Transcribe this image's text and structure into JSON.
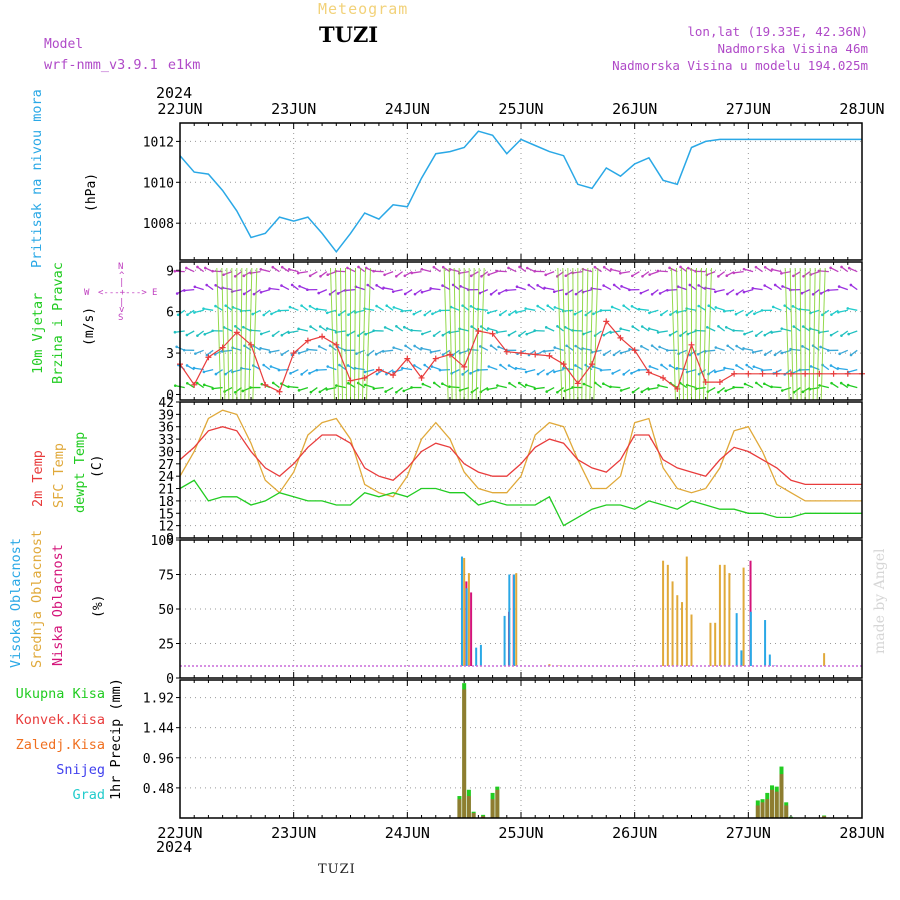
{
  "header": {
    "meteogram": "Meteogram",
    "station": "TUZI",
    "model_label": "Model",
    "model_name": "wrf-nmm_v3.9.1 e1km",
    "lonlat": "lon,lat (19.33E, 42.36N)",
    "elevation": "Nadmorska Visina 46m",
    "model_elevation": "Nadmorska Visina u modelu 194.025m"
  },
  "footer": {
    "station": "TUZI",
    "credit": "made by Angel"
  },
  "colors": {
    "pressure": "#2aa8e6",
    "temp2m": "#e83c3c",
    "sfc": "#e0a93a",
    "dewpt": "#22cc22",
    "high_cloud": "#2aa8e6",
    "mid_cloud": "#e0a93a",
    "low_cloud": "#d4147a",
    "total_rain": "#22cc22",
    "conv_rain": "#e83c3c",
    "frozen": "#f07020",
    "snow": "#4040ee",
    "hail": "#22cccc",
    "wind_label": "#22cc22",
    "compass": "#c040c0"
  },
  "chart_data": [
    {
      "type": "line",
      "panel": "pressure",
      "year_top": "2024",
      "year_bottom": "2024",
      "x_ticks": [
        "22JUN",
        "23JUN",
        "24JUN",
        "25JUN",
        "26JUN",
        "27JUN",
        "28JUN"
      ],
      "ylabel": "Pritisak na nivou mora",
      "unit": "(hPa)",
      "y_ticks": [
        "1008",
        "1010",
        "1012"
      ],
      "ylim": [
        1006.2,
        1012.9
      ],
      "x_hours": [
        0,
        3,
        6,
        9,
        12,
        15,
        18,
        21,
        24,
        27,
        30,
        33,
        36,
        39,
        42,
        45,
        48,
        51,
        54,
        57,
        60,
        63,
        66,
        69,
        72,
        75,
        78,
        81,
        84,
        87,
        90,
        93,
        96,
        99,
        102,
        105,
        108,
        111,
        114,
        117,
        120,
        123,
        126,
        129,
        132,
        135,
        138,
        141,
        144
      ],
      "series": [
        {
          "values": [
            1011.3,
            1010.5,
            1010.4,
            1009.6,
            1008.6,
            1007.3,
            1007.5,
            1008.3,
            1008.1,
            1008.3,
            1007.5,
            1006.6,
            1007.5,
            1008.5,
            1008.2,
            1008.9,
            1008.8,
            1010.2,
            1011.4,
            1011.5,
            1011.7,
            1012.5,
            1012.3,
            1011.4,
            1012.1,
            1011.8,
            1011.5,
            1011.3,
            1009.9,
            1009.7,
            1010.7,
            1010.3,
            1010.9,
            1011.2,
            1010.1,
            1009.9,
            1011.7,
            1012.0,
            1012.1,
            1012.1,
            1012.1,
            1012.1,
            1012.1,
            1012.1,
            1012.1,
            1012.1,
            1012.1,
            1012.1,
            1012.1
          ]
        }
      ]
    },
    {
      "type": "line",
      "panel": "wind",
      "ylabel_lines": [
        "10m Vjetar",
        "Brzina i Pravac"
      ],
      "unit": "(m/s)",
      "y_ticks": [
        "0",
        "3",
        "6",
        "9"
      ],
      "ylim": [
        -0.4,
        9.6
      ],
      "compass": {
        "n": "N",
        "s": "S",
        "w": "W",
        "e": "E"
      },
      "x_hours": [
        0,
        3,
        6,
        9,
        12,
        15,
        18,
        21,
        24,
        27,
        30,
        33,
        36,
        39,
        42,
        45,
        48,
        51,
        54,
        57,
        60,
        63,
        66,
        69,
        72,
        75,
        78,
        81,
        84,
        87,
        90,
        93,
        96,
        99,
        102,
        105,
        108,
        111,
        114,
        117,
        120,
        123,
        126,
        129,
        132,
        135,
        138,
        141,
        144
      ],
      "series": [
        {
          "name": "",
          "values": [
            2.2,
            0.7,
            2.7,
            3.4,
            4.5,
            3.6,
            0.7,
            0.2,
            3.0,
            3.9,
            4.2,
            3.6,
            1.0,
            1.2,
            1.8,
            1.4,
            2.6,
            1.2,
            2.6,
            2.9,
            2.0,
            4.6,
            4.4,
            3.1,
            3.0,
            2.9,
            2.8,
            2.2,
            0.8,
            2.2,
            5.3,
            4.1,
            3.2,
            1.6,
            1.2,
            0.4,
            3.6,
            0.9,
            0.9,
            1.5,
            1.5,
            1.5,
            1.5,
            1.5,
            1.5,
            1.5,
            1.5,
            1.5,
            1.5
          ]
        }
      ],
      "arrow_rows": [
        0.5,
        1.8,
        3.2,
        4.6,
        6.1,
        7.6,
        8.9
      ]
    },
    {
      "type": "line",
      "panel": "temperature",
      "ylabel_lines": [
        "2m Temp",
        "SFC Temp",
        "dewpt Temp"
      ],
      "unit": "(C)",
      "y_ticks": [
        "9",
        "12",
        "15",
        "18",
        "21",
        "24",
        "27",
        "30",
        "33",
        "36",
        "39",
        "42"
      ],
      "ylim": [
        9,
        42
      ],
      "x_hours": [
        0,
        3,
        6,
        9,
        12,
        15,
        18,
        21,
        24,
        27,
        30,
        33,
        36,
        39,
        42,
        45,
        48,
        51,
        54,
        57,
        60,
        63,
        66,
        69,
        72,
        75,
        78,
        81,
        84,
        87,
        90,
        93,
        96,
        99,
        102,
        105,
        108,
        111,
        114,
        117,
        120,
        123,
        126,
        129,
        132,
        135,
        138,
        141,
        144
      ],
      "series": [
        {
          "name": "2m Temp",
          "values": [
            28,
            31,
            35,
            36,
            35,
            30,
            26,
            24,
            27,
            31,
            34,
            34,
            32,
            26,
            24,
            23,
            26,
            30,
            32,
            31,
            27,
            25,
            24,
            24,
            27,
            31,
            33,
            32,
            28,
            26,
            25,
            28,
            34,
            34,
            28,
            26,
            25,
            24,
            28,
            31,
            30,
            28,
            26,
            23,
            22,
            22,
            22,
            22,
            22
          ]
        },
        {
          "name": "SFC Temp",
          "values": [
            24,
            30,
            38,
            40,
            39,
            32,
            23,
            20,
            25,
            34,
            37,
            38,
            33,
            22,
            20,
            19,
            24,
            33,
            37,
            33,
            25,
            21,
            20,
            20,
            24,
            34,
            37,
            36,
            28,
            21,
            21,
            24,
            37,
            38,
            26,
            21,
            20,
            21,
            26,
            35,
            36,
            30,
            22,
            20,
            18,
            18,
            18,
            18,
            18
          ]
        },
        {
          "name": "dewpt Temp",
          "values": [
            21,
            23,
            18,
            19,
            19,
            17,
            18,
            20,
            19,
            18,
            18,
            17,
            17,
            20,
            19,
            20,
            19,
            21,
            21,
            20,
            20,
            17,
            18,
            17,
            17,
            17,
            19,
            12,
            14,
            16,
            17,
            17,
            16,
            18,
            17,
            16,
            18,
            17,
            16,
            16,
            15,
            15,
            14,
            14,
            15,
            15,
            15,
            15,
            15
          ]
        }
      ]
    },
    {
      "type": "bar",
      "panel": "cloud",
      "ylabel_lines": [
        "Visoka Oblacnost",
        "Srednja Oblacnost",
        "Niska Oblacnost"
      ],
      "unit": "(%)",
      "y_ticks": [
        "0",
        "25",
        "50",
        "75",
        "100"
      ],
      "ylim": [
        0,
        100
      ],
      "x_hours": [
        58,
        60,
        61,
        63,
        64,
        66,
        69,
        70,
        71,
        75,
        77,
        78,
        80,
        81,
        82,
        85,
        87,
        102,
        103,
        104,
        105,
        106,
        107,
        108,
        109,
        110,
        112,
        113,
        114,
        115,
        116,
        117,
        118,
        119,
        120,
        121,
        124,
        125,
        126,
        132,
        133,
        134,
        136
      ],
      "series": [
        {
          "name": "Visoka Oblacnost",
          "values": [
            0,
            88,
            65,
            22,
            24,
            5,
            45,
            75,
            75,
            6,
            6,
            5,
            3,
            6,
            4,
            2,
            1,
            0,
            0,
            0,
            0,
            0,
            0,
            0,
            0,
            0,
            0,
            0,
            0,
            0,
            0,
            0,
            47,
            20,
            0,
            48,
            42,
            17,
            9,
            0,
            0,
            0,
            0
          ]
        },
        {
          "name": "Srednja Oblacnost",
          "values": [
            5,
            87,
            76,
            0,
            0,
            0,
            0,
            0,
            76,
            8,
            8,
            10,
            9,
            8,
            8,
            3,
            0,
            85,
            82,
            70,
            60,
            55,
            88,
            46,
            0,
            0,
            40,
            40,
            82,
            82,
            76,
            0,
            0,
            80,
            0,
            0,
            0,
            0,
            0,
            0,
            0,
            0,
            18
          ]
        },
        {
          "name": "Niska Oblacnost",
          "values": [
            0,
            70,
            62,
            0,
            0,
            0,
            48,
            75,
            0,
            0,
            0,
            0,
            0,
            0,
            0,
            0,
            0,
            0,
            0,
            0,
            0,
            0,
            0,
            0,
            0,
            0,
            0,
            0,
            0,
            0,
            0,
            0,
            0,
            0,
            85,
            0,
            0,
            0,
            0,
            0,
            0,
            0,
            0
          ]
        }
      ]
    },
    {
      "type": "bar",
      "panel": "precip",
      "ylabel": "1hr Precip (mm)",
      "legend": [
        "Ukupna Kisa",
        "Konvek.Kisa",
        "Zaledj.Kisa",
        "Snijeg",
        "Grad"
      ],
      "y_ticks": [
        "0.48",
        "0.96",
        "1.44",
        "1.92"
      ],
      "ylim": [
        0,
        2.2
      ],
      "x_hours": [
        59,
        60,
        61,
        62,
        64,
        66,
        67,
        122,
        123,
        124,
        125,
        126,
        127,
        128,
        129,
        136
      ],
      "series": [
        {
          "name": "Ukupna Kisa",
          "values": [
            0.35,
            2.15,
            0.45,
            0.1,
            0.05,
            0.4,
            0.5,
            0.28,
            0.3,
            0.4,
            0.52,
            0.5,
            0.82,
            0.25,
            0.02,
            0.04
          ]
        },
        {
          "name": "Konvek.Kisa",
          "values": [
            0.3,
            2.05,
            0.35,
            0.08,
            0.03,
            0.3,
            0.45,
            0.2,
            0.25,
            0.3,
            0.45,
            0.42,
            0.7,
            0.2,
            0.01,
            0.03
          ]
        }
      ]
    }
  ]
}
